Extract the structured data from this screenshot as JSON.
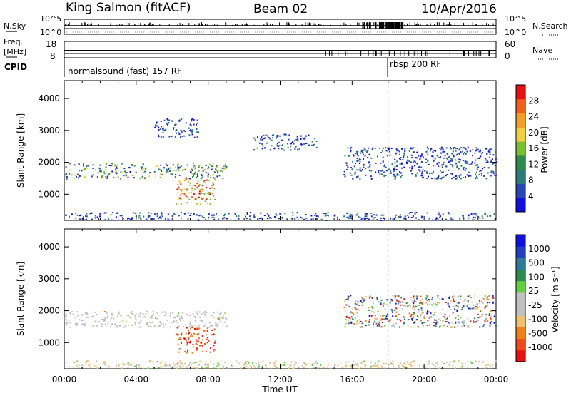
{
  "header": {
    "station": "King Salmon (fitACF)",
    "beam": "Beam 02",
    "date": "10/Apr/2016"
  },
  "noise_panel": {
    "left_label": "N.Sky",
    "right_label": "N.Search",
    "left_ticks": [
      "10^5",
      "10^0"
    ],
    "right_ticks": [
      "10^5",
      "10^0"
    ]
  },
  "freq_panel": {
    "left_label_1": "Freq.",
    "left_label_2": "[MHz]",
    "left_ticks": [
      "18",
      "8"
    ],
    "right_label": "Nave",
    "right_ticks": [
      "60",
      "0"
    ]
  },
  "cpid_panel": {
    "label": "CPID",
    "segments": [
      {
        "text": "normalsound (fast) 157 RF",
        "start_hour": 0
      },
      {
        "text": "rbsp 200 RF",
        "start_hour": 18
      }
    ]
  },
  "chart_data": [
    {
      "type": "heatmap",
      "title": "",
      "xlabel": "Time UT",
      "ylabel": "Slant Range [km]",
      "x_range_hours": [
        0,
        24
      ],
      "x_ticks": [
        "00:00",
        "04:00",
        "08:00",
        "12:00",
        "16:00",
        "20:00",
        "00:00"
      ],
      "ylim": [
        180,
        4560
      ],
      "y_ticks": [
        1000,
        2000,
        3000,
        4000
      ],
      "vertical_marker_hour": 18,
      "colorbar": {
        "label": "Power [dB]",
        "colors": [
          "#1010e0",
          "#2848b0",
          "#2e7a7a",
          "#2e8a4a",
          "#78c030",
          "#f0d040",
          "#f0a028",
          "#f06018",
          "#e81010"
        ],
        "tick_labels": [
          "4",
          "8",
          "12",
          "16",
          "20",
          "24",
          "28"
        ]
      },
      "scatter_bands": [
        {
          "t0": 0.0,
          "t1": 9.0,
          "r0": 1500,
          "r1": 2000,
          "description": "dense backscatter band"
        },
        {
          "t0": 6.2,
          "t1": 8.4,
          "r0": 700,
          "r1": 1500,
          "description": "strong near-range echoes"
        },
        {
          "t0": 5.0,
          "t1": 7.5,
          "r0": 2800,
          "r1": 3400,
          "description": "sparse far-range echoes"
        },
        {
          "t0": 10.5,
          "t1": 14.0,
          "r0": 2400,
          "r1": 2900,
          "description": "sparse mid-range echoes"
        },
        {
          "t0": 15.5,
          "t1": 24.0,
          "r0": 1500,
          "r1": 2500,
          "description": "evening scatter"
        },
        {
          "t0": 0.0,
          "t1": 24.0,
          "r0": 200,
          "r1": 450,
          "description": "ground-level clutter"
        }
      ]
    },
    {
      "type": "heatmap",
      "title": "",
      "xlabel": "Time UT",
      "ylabel": "Slant Range [km]",
      "x_range_hours": [
        0,
        24
      ],
      "x_ticks": [
        "00:00",
        "04:00",
        "08:00",
        "12:00",
        "16:00",
        "20:00",
        "00:00"
      ],
      "ylim": [
        180,
        4560
      ],
      "y_ticks": [
        1000,
        2000,
        3000,
        4000
      ],
      "vertical_marker_hour": 18,
      "colorbar": {
        "label": "Velocity [m s⁻¹]",
        "colors": [
          "#e81010",
          "#f04818",
          "#f08018",
          "#f0c070",
          "#c0c0c0",
          "#c0c0c0",
          "#60d040",
          "#2e8a4a",
          "#2e7a9a",
          "#2040c0",
          "#1010e0"
        ],
        "tick_labels": [
          "-1000",
          "-500",
          "-100",
          "-25",
          "25",
          "100",
          "500",
          "1000"
        ]
      },
      "scatter_bands": [
        {
          "t0": 0.0,
          "t1": 9.0,
          "r0": 1500,
          "r1": 2000,
          "description": "low-velocity band"
        },
        {
          "t0": 6.2,
          "t1": 8.4,
          "r0": 700,
          "r1": 1500,
          "description": "negative velocity echoes"
        },
        {
          "t0": 15.5,
          "t1": 24.0,
          "r0": 1500,
          "r1": 2500,
          "description": "evening scatter"
        },
        {
          "t0": 0.0,
          "t1": 24.0,
          "r0": 200,
          "r1": 450,
          "description": "ground-level clutter"
        }
      ]
    }
  ]
}
